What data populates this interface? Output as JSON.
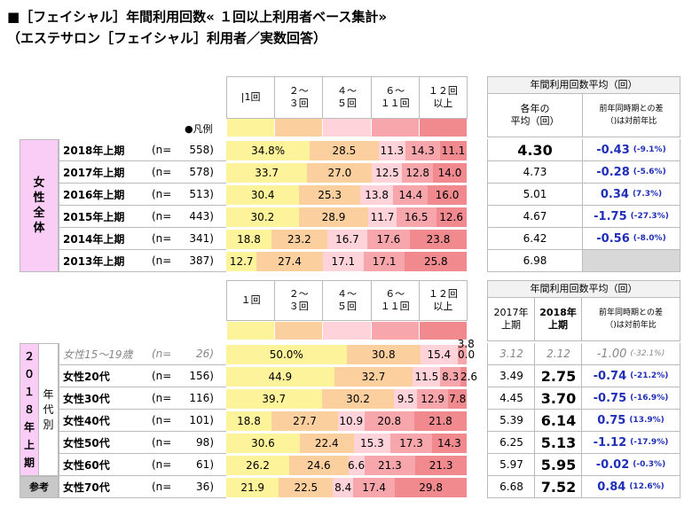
{
  "title_line1": "■［フェイシャル］年間利用回数« １回以上利用者ベース集計»",
  "title_line2": "（エステサロン［フェイシャル］利用者／実数回答）",
  "colors": {
    "c1": "#fdf39a",
    "c2": "#fbcf9e",
    "c3": "#ffd3d9",
    "c4": "#f7a7ac",
    "c5": "#f08a8e",
    "pink_side": "#f9cdf6",
    "gray_side": "#c8c8c8",
    "avg_header_fill": "#f2f2f2",
    "blank_fill": "#d8d8d8"
  },
  "legend_label": "●凡例",
  "top": {
    "categories": [
      "|1回",
      "２～\n３回",
      "４～\n５回",
      "６～\n１１回",
      "１２回\n以上"
    ],
    "avg_title": "年間利用回数平均（回）",
    "avg_col1": "各年の\n平均（回）",
    "avg_col2": "前年同時期との差\n（)は対前年比",
    "side_label": [
      "女",
      "性",
      "全",
      "体"
    ],
    "rows": [
      {
        "name": "2018年上期",
        "n_label": "(n=",
        "n": "558)",
        "values": [
          34.8,
          28.5,
          11.3,
          14.3,
          11.1
        ],
        "labels": [
          "34.8%",
          "28.5",
          "11.3",
          "14.3",
          "11.1"
        ],
        "avg": "4.30",
        "diff": "-0.43",
        "pct": "(-9.1%)",
        "bold": true
      },
      {
        "name": "2017年上期",
        "n_label": "(n=",
        "n": "578)",
        "values": [
          33.7,
          27.0,
          12.5,
          12.8,
          14.0
        ],
        "labels": [
          "33.7",
          "27.0",
          "12.5",
          "12.8",
          "14.0"
        ],
        "avg": "4.73",
        "diff": "-0.28",
        "pct": "(-5.6%)"
      },
      {
        "name": "2016年上期",
        "n_label": "(n=",
        "n": "513)",
        "values": [
          30.4,
          25.3,
          13.8,
          14.4,
          16.0
        ],
        "labels": [
          "30.4",
          "25.3",
          "13.8",
          "14.4",
          "16.0"
        ],
        "avg": "5.01",
        "diff": "0.34",
        "pct": "(7.3%)"
      },
      {
        "name": "2015年上期",
        "n_label": "(n=",
        "n": "443)",
        "values": [
          30.2,
          28.9,
          11.7,
          16.5,
          12.6
        ],
        "labels": [
          "30.2",
          "28.9",
          "11.7",
          "16.5",
          "12.6"
        ],
        "avg": "4.67",
        "diff": "-1.75",
        "pct": "(-27.3%)"
      },
      {
        "name": "2014年上期",
        "n_label": "(n=",
        "n": "341)",
        "values": [
          18.8,
          23.2,
          16.7,
          17.6,
          23.8
        ],
        "labels": [
          "18.8",
          "23.2",
          "16.7",
          "17.6",
          "23.8"
        ],
        "avg": "6.42",
        "diff": "-0.56",
        "pct": "(-8.0%)"
      },
      {
        "name": "2013年上期",
        "n_label": "(n=",
        "n": "387)",
        "values": [
          12.7,
          27.4,
          17.1,
          17.1,
          25.8
        ],
        "labels": [
          "12.7",
          "27.4",
          "17.1",
          "17.1",
          "25.8"
        ],
        "avg": "6.98",
        "diff": "",
        "pct": ""
      }
    ]
  },
  "bottom": {
    "categories": [
      "１回",
      "２～\n３回",
      "４～\n５回",
      "６～\n１１回",
      "１２回\n以上"
    ],
    "avg_title": "年間利用回数平均（回）",
    "col_2017": "2017年\n上期",
    "col_2018": "2018年\n上期",
    "col_diff": "前年同時期との差\n（)は対前年比",
    "side_label": [
      "２",
      "０",
      "１",
      "８",
      "年",
      "上",
      "期"
    ],
    "sub_label": [
      "年",
      "代",
      "別"
    ],
    "ref_label": "参考",
    "rows": [
      {
        "name": "女性15～19歳",
        "n_label": "(n=",
        "n": "26)",
        "values": [
          50.0,
          30.8,
          15.4,
          3.8,
          0.0
        ],
        "labels": [
          "50.0%",
          "30.8",
          "15.4",
          "3.8",
          "0.0"
        ],
        "v2017": "3.12",
        "v2018": "2.12",
        "diff": "-1.00",
        "pct": "(-32.1%)",
        "muted": true
      },
      {
        "name": "女性20代",
        "n_label": "(n=",
        "n": "156)",
        "values": [
          44.9,
          32.7,
          11.5,
          8.3,
          2.6
        ],
        "labels": [
          "44.9",
          "32.7",
          "11.5",
          "8.3",
          "2.6"
        ],
        "v2017": "3.49",
        "v2018": "2.75",
        "diff": "-0.74",
        "pct": "(-21.2%)"
      },
      {
        "name": "女性30代",
        "n_label": "(n=",
        "n": "116)",
        "values": [
          39.7,
          30.2,
          9.5,
          12.9,
          7.8
        ],
        "labels": [
          "39.7",
          "30.2",
          "9.5",
          "12.9",
          "7.8"
        ],
        "v2017": "4.45",
        "v2018": "3.70",
        "diff": "-0.75",
        "pct": "(-16.9%)"
      },
      {
        "name": "女性40代",
        "n_label": "(n=",
        "n": "101)",
        "values": [
          18.8,
          27.7,
          10.9,
          20.8,
          21.8
        ],
        "labels": [
          "18.8",
          "27.7",
          "10.9",
          "20.8",
          "21.8"
        ],
        "v2017": "5.39",
        "v2018": "6.14",
        "diff": "0.75",
        "pct": "(13.9%)"
      },
      {
        "name": "女性50代",
        "n_label": "(n=",
        "n": "98)",
        "values": [
          30.6,
          22.4,
          15.3,
          17.3,
          14.3
        ],
        "labels": [
          "30.6",
          "22.4",
          "15.3",
          "17.3",
          "14.3"
        ],
        "v2017": "6.25",
        "v2018": "5.13",
        "diff": "-1.12",
        "pct": "(-17.9%)"
      },
      {
        "name": "女性60代",
        "n_label": "(n=",
        "n": "61)",
        "values": [
          26.2,
          24.6,
          6.6,
          21.3,
          21.3
        ],
        "labels": [
          "26.2",
          "24.6",
          "6.6",
          "21.3",
          "21.3"
        ],
        "v2017": "5.97",
        "v2018": "5.95",
        "diff": "-0.02",
        "pct": "(-0.3%)"
      },
      {
        "name": "女性70代",
        "n_label": "(n=",
        "n": "36)",
        "values": [
          21.9,
          22.5,
          8.4,
          17.4,
          29.8
        ],
        "labels": [
          "21.9",
          "22.5",
          "8.4",
          "17.4",
          "29.8"
        ],
        "v2017": "6.68",
        "v2018": "7.52",
        "diff": "0.84",
        "pct": "(12.6%)"
      }
    ]
  },
  "chart_data": [
    {
      "type": "bar",
      "stacked": true,
      "orientation": "horizontal",
      "title": "［フェイシャル］年間利用回数« １回以上利用者ベース集計»",
      "categories": [
        "2018年上期",
        "2017年上期",
        "2016年上期",
        "2015年上期",
        "2014年上期",
        "2013年上期"
      ],
      "series": [
        {
          "name": "1回",
          "values": [
            34.8,
            33.7,
            30.4,
            30.2,
            18.8,
            12.7
          ]
        },
        {
          "name": "2～3回",
          "values": [
            28.5,
            27.0,
            25.3,
            28.9,
            23.2,
            27.4
          ]
        },
        {
          "name": "4～5回",
          "values": [
            11.3,
            12.5,
            13.8,
            11.7,
            16.7,
            17.1
          ]
        },
        {
          "name": "6～11回",
          "values": [
            14.3,
            12.8,
            14.4,
            16.5,
            17.6,
            17.1
          ]
        },
        {
          "name": "12回以上",
          "values": [
            11.1,
            14.0,
            16.0,
            12.6,
            23.8,
            25.8
          ]
        }
      ],
      "averages": [
        4.3,
        4.73,
        5.01,
        4.67,
        6.42,
        6.98
      ],
      "diff": [
        -0.43,
        -0.28,
        0.34,
        -1.75,
        -0.56,
        null
      ],
      "xlim": [
        0,
        100
      ]
    },
    {
      "type": "bar",
      "stacked": true,
      "orientation": "horizontal",
      "categories": [
        "女性15～19歳",
        "女性20代",
        "女性30代",
        "女性40代",
        "女性50代",
        "女性60代",
        "女性70代"
      ],
      "series": [
        {
          "name": "1回",
          "values": [
            50.0,
            44.9,
            39.7,
            18.8,
            30.6,
            26.2,
            21.9
          ]
        },
        {
          "name": "2～3回",
          "values": [
            30.8,
            32.7,
            30.2,
            27.7,
            22.4,
            24.6,
            22.5
          ]
        },
        {
          "name": "4～5回",
          "values": [
            15.4,
            11.5,
            9.5,
            10.9,
            15.3,
            6.6,
            8.4
          ]
        },
        {
          "name": "6～11回",
          "values": [
            3.8,
            8.3,
            12.9,
            20.8,
            17.3,
            21.3,
            17.4
          ]
        },
        {
          "name": "12回以上",
          "values": [
            0.0,
            2.6,
            7.8,
            21.8,
            14.3,
            21.3,
            29.8
          ]
        }
      ],
      "avg_2017": [
        3.12,
        3.49,
        4.45,
        5.39,
        6.25,
        5.97,
        6.68
      ],
      "avg_2018": [
        2.12,
        2.75,
        3.7,
        6.14,
        5.13,
        5.95,
        7.52
      ],
      "diff": [
        -1.0,
        -0.74,
        -0.75,
        0.75,
        -1.12,
        -0.02,
        0.84
      ],
      "xlim": [
        0,
        100
      ]
    }
  ]
}
